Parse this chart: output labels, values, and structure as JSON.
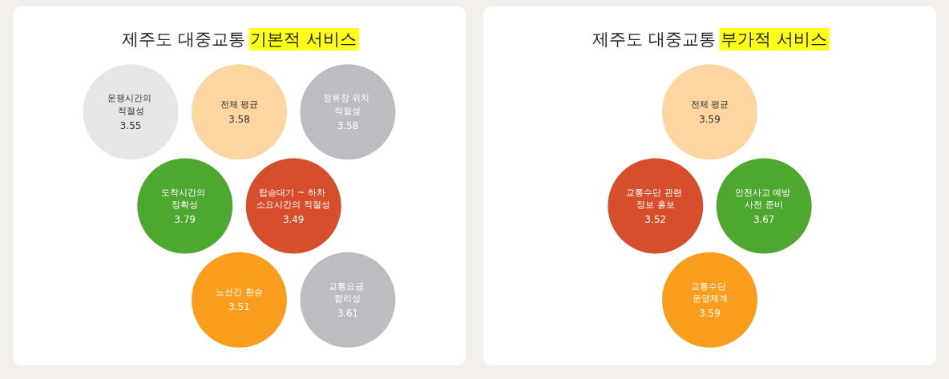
{
  "chart_data": [
    {
      "type": "other",
      "title": "제주도 대중교통 기본적 서비스",
      "categories": [
        "도착시간의 정확성",
        "탑승대기 ~ 하차 소요시간의 적절성",
        "노선간 환승",
        "전체 평균",
        "운행시간의 적절성",
        "정류장 위치 적절성",
        "교통요금 합리성"
      ],
      "values": [
        3.79,
        3.49,
        3.51,
        3.58,
        3.55,
        3.58,
        3.61
      ],
      "colors": [
        "#4ea72e",
        "#d64e2b",
        "#f99d1c",
        "#fdd5a0",
        "#e6e6e6",
        "#bcbdc0",
        "#bcbdc0"
      ],
      "data_labels": true
    },
    {
      "type": "other",
      "title": "제주도 대중교통 부가적 서비스",
      "categories": [
        "교통수단 관련 정보 홍보",
        "안전사고 예방 사전 준비",
        "교통수단 운영체계",
        "전체 평균"
      ],
      "values": [
        3.52,
        3.67,
        3.59,
        3.59
      ],
      "colors": [
        "#d64e2b",
        "#4ea72e",
        "#f99d1c",
        "#fdd5a0"
      ],
      "data_labels": true
    }
  ]
}
